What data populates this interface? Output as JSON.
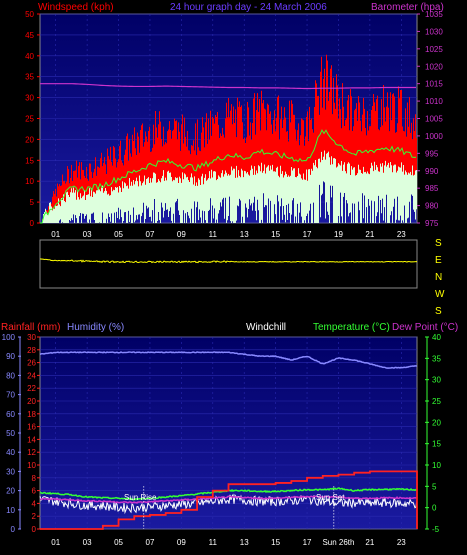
{
  "header": {
    "windspeed_label": "Windspeed (kph)",
    "title": "24 hour graph day - 24 March 2006",
    "barometer_label": "Barometer (hpa)"
  },
  "middle": {
    "compass": [
      "S",
      "E",
      "N",
      "W",
      "S"
    ]
  },
  "lower_header": {
    "rainfall_label": "Rainfall (mm)",
    "humidity_label": "Humidity (%)",
    "windchill_label": "Windchill",
    "temperature_label": "Temperature (°C)",
    "dewpoint_label": "Dew Point (°C)"
  },
  "annotations": {
    "sunrise": "Sun Rise",
    "sunset": "Sun Set",
    "sun_date": "Sun 26th"
  },
  "colors": {
    "windspeed": "#ff0000",
    "title": "#6b3cff",
    "barometer": "#cc33cc",
    "windchill_label": "#ffffff",
    "temperature": "#33ff33",
    "dewpoint": "#cc33cc",
    "humidity": "#8888ff",
    "rainfall": "#ff2222",
    "direction": "#ffff00",
    "gust_floor": "#ddffdd",
    "average": "#33ff33",
    "plot_bg_top": "#000066",
    "plot_bg_bottom": "#1a1aa0"
  },
  "chart_data": [
    {
      "type": "line",
      "x": [
        0,
        1,
        2,
        3,
        4,
        5,
        6,
        7,
        8,
        9,
        10,
        11,
        12,
        13,
        14,
        15,
        16,
        17,
        18,
        19,
        20,
        21,
        22,
        23,
        24
      ],
      "x_ticks": [
        "01",
        "03",
        "05",
        "07",
        "09",
        "11",
        "13",
        "15",
        "17",
        "19",
        "21",
        "23"
      ],
      "y_left_ticks": [
        0,
        5,
        10,
        15,
        20,
        25,
        30,
        35,
        40,
        45,
        50
      ],
      "y_right_ticks": [
        975,
        980,
        985,
        990,
        995,
        1000,
        1005,
        1010,
        1015,
        1020,
        1025,
        1030,
        1035
      ],
      "ylim_left": [
        0,
        50
      ],
      "ylim_right": [
        975,
        1035
      ],
      "series": [
        {
          "name": "Windspeed (kph)",
          "axis": "left",
          "values": [
            0,
            6,
            10,
            10,
            11,
            13,
            15,
            17,
            18,
            17,
            16,
            18,
            20,
            19,
            21,
            20,
            19,
            18,
            27,
            23,
            20,
            21,
            22,
            21,
            19
          ]
        },
        {
          "name": "Barometer (hpa)",
          "axis": "right",
          "values": [
            1015,
            1015,
            1015,
            1014.8,
            1014.5,
            1014.3,
            1014.2,
            1014.2,
            1014.3,
            1014.2,
            1014.1,
            1014.0,
            1013.9,
            1013.9,
            1013.8,
            1013.8,
            1013.7,
            1013.6,
            1013.7,
            1013.7,
            1013.8,
            1013.8,
            1013.9,
            1013.9,
            1013.9
          ]
        }
      ]
    },
    {
      "type": "line",
      "x": [
        0,
        1,
        2,
        3,
        4,
        5,
        6,
        7,
        8,
        9,
        10,
        11,
        12,
        13,
        14,
        15,
        16,
        17,
        18,
        19,
        20,
        21,
        22,
        23,
        24
      ],
      "values_deg": [
        135,
        150,
        150,
        155,
        160,
        160,
        160,
        162,
        160,
        160,
        162,
        160,
        158,
        160,
        160,
        160,
        160,
        160,
        160,
        160,
        160,
        160,
        160,
        160,
        160
      ],
      "compass_order": [
        "S",
        "E",
        "N",
        "W",
        "S"
      ]
    },
    {
      "type": "line",
      "x": [
        0,
        1,
        2,
        3,
        4,
        5,
        6,
        7,
        8,
        9,
        10,
        11,
        12,
        13,
        14,
        15,
        16,
        17,
        18,
        19,
        20,
        21,
        22,
        23,
        24
      ],
      "x_ticks": [
        "01",
        "03",
        "05",
        "07",
        "09",
        "11",
        "13",
        "15",
        "17",
        "Sun 26th",
        "21",
        "23"
      ],
      "y_rain_ticks": [
        0,
        2,
        4,
        6,
        8,
        10,
        12,
        14,
        16,
        18,
        20,
        22,
        24,
        26,
        28,
        30
      ],
      "y_humidity_ticks": [
        0,
        10,
        20,
        30,
        40,
        50,
        60,
        70,
        80,
        90,
        100
      ],
      "y_temp_ticks": [
        -5,
        0,
        5,
        10,
        15,
        20,
        25,
        30,
        35,
        40
      ],
      "ylim_rain": [
        0,
        30
      ],
      "ylim_humidity": [
        0,
        100
      ],
      "ylim_temp": [
        -5,
        40
      ],
      "series": [
        {
          "name": "Humidity (%)",
          "axis": "humidity",
          "values": [
            91,
            92,
            92,
            92,
            92,
            92,
            92,
            92,
            92,
            92,
            92,
            92,
            92,
            91,
            90,
            90,
            88,
            90,
            86,
            89,
            88,
            86,
            84,
            84,
            85
          ]
        },
        {
          "name": "Rainfall (mm)",
          "axis": "rain",
          "values": [
            0,
            0,
            0,
            0,
            0.5,
            1.5,
            2.0,
            2.2,
            2.5,
            3,
            5,
            6,
            7,
            7,
            7,
            7.2,
            7.5,
            8,
            8.3,
            8.5,
            8.8,
            9,
            9,
            9,
            0
          ]
        },
        {
          "name": "Temperature (°C)",
          "axis": "temp",
          "values": [
            3.5,
            3.3,
            3.0,
            2.5,
            2.3,
            2.2,
            2.0,
            2.2,
            2.5,
            2.8,
            3.2,
            3.6,
            4.0,
            4.0,
            3.8,
            3.8,
            4.0,
            4.2,
            4.2,
            4.5,
            4.0,
            4.2,
            4.3,
            4.3,
            4.2
          ]
        },
        {
          "name": "Dew Point (°C)",
          "axis": "temp",
          "values": [
            2.0,
            2.0,
            1.8,
            1.6,
            1.5,
            1.3,
            1.2,
            1.4,
            1.6,
            1.8,
            2.0,
            2.2,
            2.5,
            2.4,
            2.2,
            2.2,
            2.4,
            2.6,
            2.6,
            2.5,
            2.2,
            2.2,
            2.3,
            2.3,
            2.2
          ]
        },
        {
          "name": "Windchill",
          "axis": "temp",
          "values": [
            2.0,
            1.5,
            1.0,
            0.5,
            0.5,
            0.0,
            0.0,
            0.2,
            0.5,
            0.8,
            1.0,
            1.5,
            2.0,
            1.8,
            1.5,
            1.5,
            1.6,
            2.0,
            1.5,
            1.0,
            1.2,
            1.0,
            1.2,
            1.0,
            1.0
          ]
        }
      ]
    }
  ]
}
